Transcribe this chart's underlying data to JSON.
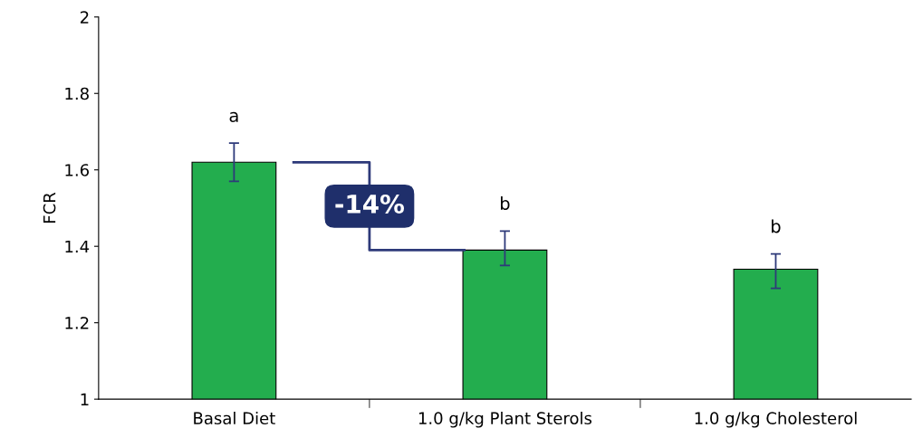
{
  "chart_data": {
    "type": "bar",
    "ylabel": "FCR",
    "categories": [
      "Basal Diet",
      "1.0 g/kg Plant Sterols",
      "1.0 g/kg Cholesterol"
    ],
    "values": [
      1.62,
      1.39,
      1.34
    ],
    "errors": [
      [
        1.57,
        1.67
      ],
      [
        1.35,
        1.44
      ],
      [
        1.29,
        1.38
      ]
    ],
    "color": "#23ad4e",
    "ylim": [
      1,
      2
    ],
    "yticks": [
      1,
      1.2,
      1.4,
      1.6,
      1.8,
      2
    ],
    "grid": false,
    "legend": false,
    "annotations": [
      {
        "text": "a",
        "x": "Basal Diet",
        "y": 1.67
      },
      {
        "text": "b",
        "x": "1.0 g/kg Plant Sterols",
        "y": 1.44
      },
      {
        "text": "b",
        "x": "1.0 g/kg Cholesterol",
        "y": 1.38
      },
      "-14%"
    ]
  }
}
